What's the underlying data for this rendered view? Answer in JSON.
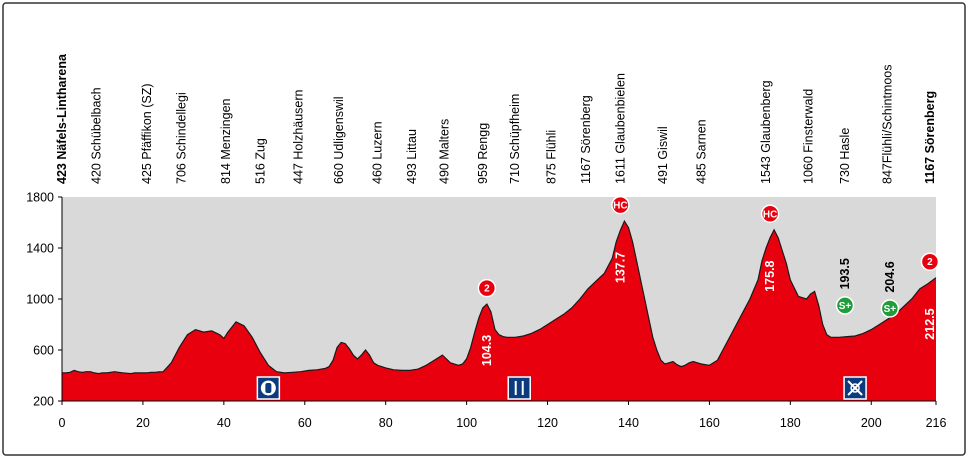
{
  "chart_data": {
    "type": "area",
    "xlabel": "",
    "ylabel": "",
    "xlim": [
      0,
      216
    ],
    "ylim": [
      200,
      1800
    ],
    "x_ticks": [
      0,
      20,
      40,
      60,
      80,
      100,
      120,
      140,
      160,
      180,
      200,
      216
    ],
    "y_ticks": [
      200,
      600,
      1000,
      1400,
      1800
    ],
    "grid": false,
    "colors": {
      "fill": "#e8000e",
      "plot_bg": "#d9d9d9",
      "line": "#1a1a1a",
      "sprint": "#1f9d3a",
      "icon_bg": "#0b3a7e"
    },
    "series": [
      {
        "values_km": [
          0,
          1,
          2,
          3,
          4,
          5,
          6,
          7,
          8,
          9,
          10,
          11,
          12,
          13,
          14,
          15,
          16,
          17,
          18,
          19,
          20,
          21,
          22,
          23,
          24,
          25,
          27,
          29,
          31,
          33,
          35,
          37,
          39,
          40,
          41,
          42,
          43,
          45,
          47,
          49,
          51,
          53,
          55,
          57,
          59,
          61,
          63,
          65,
          66,
          67,
          68,
          69,
          70,
          71,
          72,
          73,
          74,
          75,
          76,
          77,
          78,
          80,
          82,
          84,
          86,
          88,
          90,
          92,
          94,
          96,
          98,
          99,
          100,
          101,
          102,
          103,
          104,
          105,
          106,
          107,
          108,
          109,
          110,
          112,
          114,
          116,
          118,
          120,
          122,
          124,
          126,
          128,
          130,
          132,
          134,
          136,
          137,
          138,
          139,
          140,
          141,
          142,
          143,
          144,
          145,
          146,
          147,
          148,
          149,
          150,
          151,
          152,
          153,
          154,
          155,
          156,
          157,
          158,
          160,
          162,
          164,
          166,
          168,
          170,
          172,
          173,
          174,
          175,
          176,
          177,
          178,
          179,
          180,
          182,
          184,
          185,
          186,
          187,
          188,
          189,
          190,
          192,
          194,
          196,
          198,
          200,
          202,
          204,
          206,
          208,
          210,
          212,
          214,
          216
        ],
        "values_alt": [
          420,
          420,
          425,
          440,
          430,
          425,
          430,
          430,
          420,
          415,
          420,
          420,
          425,
          430,
          425,
          420,
          418,
          415,
          420,
          420,
          420,
          420,
          425,
          425,
          428,
          430,
          500,
          620,
          720,
          760,
          740,
          750,
          720,
          690,
          740,
          780,
          820,
          790,
          700,
          580,
          480,
          430,
          420,
          425,
          430,
          440,
          445,
          455,
          470,
          520,
          620,
          660,
          650,
          610,
          560,
          530,
          560,
          600,
          560,
          500,
          480,
          460,
          445,
          440,
          440,
          450,
          480,
          520,
          560,
          500,
          480,
          490,
          530,
          620,
          740,
          850,
          930,
          960,
          900,
          760,
          720,
          705,
          700,
          700,
          710,
          730,
          760,
          800,
          840,
          880,
          930,
          1000,
          1080,
          1140,
          1200,
          1320,
          1450,
          1540,
          1611,
          1560,
          1450,
          1300,
          1150,
          1000,
          850,
          700,
          600,
          520,
          490,
          500,
          510,
          485,
          470,
          480,
          500,
          510,
          500,
          490,
          480,
          520,
          640,
          760,
          880,
          1000,
          1150,
          1300,
          1400,
          1480,
          1543,
          1480,
          1380,
          1280,
          1150,
          1020,
          1000,
          1040,
          1060,
          950,
          800,
          720,
          700,
          700,
          705,
          710,
          730,
          760,
          800,
          840,
          880,
          940,
          1000,
          1080,
          1120,
          1167
        ]
      }
    ],
    "places": [
      {
        "km": 0,
        "name": "423 Näfels-Lintharena",
        "bold": true
      },
      {
        "km": 8.5,
        "name": "420 Schübelbach",
        "bold": false
      },
      {
        "km": 21,
        "name": "425 Pfäffikon (SZ)",
        "bold": false
      },
      {
        "km": 29.5,
        "name": "706 Schindellegi",
        "bold": false
      },
      {
        "km": 40.5,
        "name": "814 Menzingen",
        "bold": false
      },
      {
        "km": 49,
        "name": "516 Zug",
        "bold": false
      },
      {
        "km": 58.5,
        "name": "447 Holzhäusern",
        "bold": false
      },
      {
        "km": 68.5,
        "name": "660 Udligenswil",
        "bold": false
      },
      {
        "km": 78,
        "name": "460 Luzern",
        "bold": false
      },
      {
        "km": 86.5,
        "name": "493 Littau",
        "bold": false
      },
      {
        "km": 94.5,
        "name": "490 Malters",
        "bold": false
      },
      {
        "km": 104,
        "name": "959 Rengg",
        "bold": false
      },
      {
        "km": 112,
        "name": "710 Schüpfheim",
        "bold": false
      },
      {
        "km": 121,
        "name": "875 Flühli",
        "bold": false
      },
      {
        "km": 129.5,
        "name": "1167 Sörenberg",
        "bold": false
      },
      {
        "km": 138,
        "name": "1611 Glaubenbielen",
        "bold": false
      },
      {
        "km": 148.5,
        "name": "491 Giswil",
        "bold": false
      },
      {
        "km": 158,
        "name": "485 Sarnen",
        "bold": false
      },
      {
        "km": 174,
        "name": "1543 Glaubenberg",
        "bold": false
      },
      {
        "km": 184.5,
        "name": "1060 Finsterwald",
        "bold": false
      },
      {
        "km": 193.5,
        "name": "730 Hasle",
        "bold": false
      },
      {
        "km": 204,
        "name": "847Flühli/Schintmoos",
        "bold": false
      },
      {
        "km": 214.5,
        "name": "1167 Sörenberg",
        "bold": true
      }
    ],
    "climbs": [
      {
        "km": 105,
        "alt": 960,
        "cat": "2",
        "label": "104.3",
        "color": "#e8000e"
      },
      {
        "km": 138,
        "alt": 1611,
        "cat": "HC",
        "label": "137.7",
        "color": "#e8000e"
      },
      {
        "km": 175,
        "alt": 1543,
        "cat": "HC",
        "label": "175.8",
        "color": "#e8000e"
      },
      {
        "km": 214.5,
        "alt": 1167,
        "cat": "2",
        "label": "212.5",
        "color": "#e8000e"
      }
    ],
    "sprints": [
      {
        "km": 193.5,
        "alt": 730,
        "cat": "S+",
        "label": "193.5"
      },
      {
        "km": 204.6,
        "alt": 847,
        "cat": "S+",
        "label": "204.6"
      }
    ],
    "service_icons": [
      {
        "km": 51,
        "icon": "water-bottle-icon"
      },
      {
        "km": 113,
        "icon": "feed-zone-icon"
      },
      {
        "km": 196,
        "icon": "no-feed-zone-icon"
      }
    ]
  }
}
